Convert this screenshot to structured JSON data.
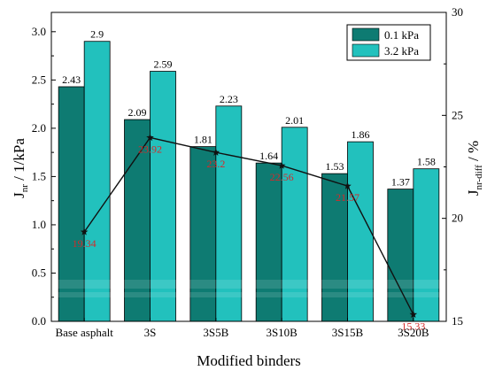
{
  "chart_data": {
    "type": "bar",
    "xlabel": "Modified binders",
    "ylabel_main": "J",
    "ylabel_sub": "nr",
    "ylabel_tail": " / 1/kPa",
    "y2label_main": "J",
    "y2label_sub": "nr-diff",
    "y2label_tail": " / %",
    "ylim": [
      0,
      3.2
    ],
    "yticks": [
      "0.0",
      "0.5",
      "1.0",
      "1.5",
      "2.0",
      "2.5",
      "3.0"
    ],
    "y2lim": [
      15,
      30
    ],
    "y2ticks": [
      "15",
      "20",
      "25",
      "30"
    ],
    "categories": [
      "Base asphalt",
      "3S",
      "3S5B",
      "3S10B",
      "3S15B",
      "3S20B"
    ],
    "series": [
      {
        "name": "0.1 kPa",
        "color": "#0e7b72",
        "values": [
          2.43,
          2.09,
          1.81,
          1.64,
          1.53,
          1.37
        ],
        "labels": [
          "2.43",
          "2.09",
          "1.81",
          "1.64",
          "1.53",
          "1.37"
        ]
      },
      {
        "name": "3.2 kPa",
        "color": "#22c1bd",
        "values": [
          2.9,
          2.59,
          2.23,
          2.01,
          1.86,
          1.58
        ],
        "labels": [
          "2.9",
          "2.59",
          "2.23",
          "2.01",
          "1.86",
          "1.58"
        ]
      }
    ],
    "line_series": {
      "axis": "right",
      "color": "#111111",
      "label_color": "#d42a2a",
      "marker": "star",
      "values": [
        19.34,
        23.92,
        23.2,
        22.56,
        21.57,
        15.33
      ],
      "labels": [
        "19.34",
        "23.92",
        "23.2",
        "22.56",
        "21.57",
        "15.33"
      ]
    },
    "legend": {
      "position": "top-right"
    }
  }
}
